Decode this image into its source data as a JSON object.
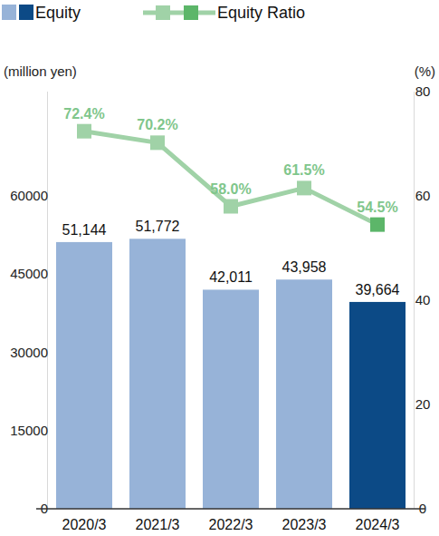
{
  "chart_data": {
    "type": "bar",
    "categories": [
      "2020/3",
      "2021/3",
      "2022/3",
      "2023/3",
      "2024/3"
    ],
    "ylabel": "(million yen)",
    "y2label": "(%)",
    "ylim": [
      0,
      80000
    ],
    "yticks": [
      0,
      15000,
      30000,
      45000,
      60000
    ],
    "y2lim": [
      0,
      80
    ],
    "y2ticks": [
      0,
      20,
      40,
      60,
      80
    ],
    "grid": false,
    "legend": "top-left",
    "data_labels": true,
    "series": [
      {
        "name": "Equity",
        "type": "bar",
        "colors": [
          "#97b3d8",
          "#97b3d8",
          "#97b3d8",
          "#97b3d8",
          "#0c4a86"
        ],
        "values": [
          51144,
          51772,
          42011,
          43958,
          39664
        ],
        "value_labels": [
          "51,144",
          "51,772",
          "42,011",
          "43,958",
          "39,664"
        ]
      },
      {
        "name": "Equity Ratio",
        "type": "line",
        "axis": "y2",
        "marker": "square",
        "color": "#a0d2a7",
        "colors": [
          "#a0d2a7",
          "#a0d2a7",
          "#a0d2a7",
          "#a0d2a7",
          "#5cb669"
        ],
        "values": [
          72.4,
          70.2,
          58.0,
          61.5,
          54.5
        ],
        "value_labels": [
          "72.4%",
          "70.2%",
          "58.0%",
          "61.5%",
          "54.5%"
        ]
      }
    ]
  }
}
